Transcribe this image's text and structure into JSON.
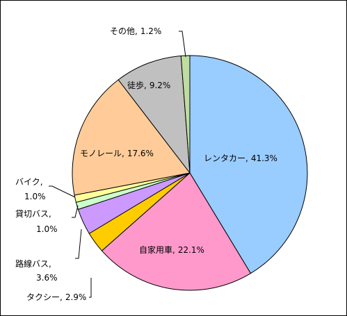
{
  "chart_data": {
    "type": "pie",
    "categories": [
      "レンタカー,",
      "自家用車,",
      "タクシー,",
      "路線バス,",
      "貸切バス,",
      "バイク,",
      "モノレール,",
      "徒歩,",
      "その他,"
    ],
    "values": [
      41.3,
      22.1,
      2.9,
      3.6,
      1.0,
      1.0,
      17.6,
      9.2,
      1.2
    ],
    "value_labels": [
      "41.3%",
      "22.1%",
      "2.9%",
      "3.6%",
      "1.0%",
      "1.0%",
      "17.6%",
      "9.2%",
      "1.2%"
    ],
    "colors": [
      "#99ccff",
      "#ff99cc",
      "#ffcc00",
      "#cc99ff",
      "#ccffcc",
      "#ffff99",
      "#ffcc99",
      "#c0c0c0",
      "#c0dca0"
    ]
  }
}
